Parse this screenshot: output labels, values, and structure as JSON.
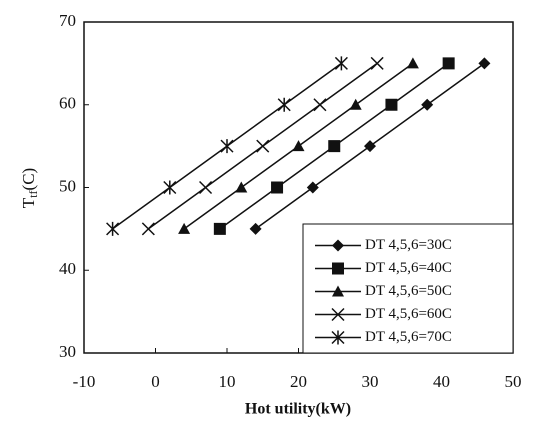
{
  "chart_data": {
    "type": "line",
    "xlabel": "Hot utility(kW)",
    "ylabel": [
      "T",
      "tf",
      "(C)"
    ],
    "xlim": [
      -10,
      50
    ],
    "xticks": [
      -10,
      0,
      10,
      20,
      30,
      40,
      50
    ],
    "ylim": [
      30,
      70
    ],
    "yticks": [
      30,
      40,
      50,
      60,
      70
    ],
    "legend": "lower right",
    "series": [
      {
        "name": "DT 4,5,6=30C",
        "marker": "diamond",
        "color": "#111111",
        "x": [
          14,
          22,
          30,
          38,
          46
        ],
        "values": [
          45,
          50,
          55,
          60,
          65
        ]
      },
      {
        "name": "DT 4,5,6=40C",
        "marker": "square",
        "color": "#111111",
        "x": [
          9,
          17,
          25,
          33,
          41
        ],
        "values": [
          45,
          50,
          55,
          60,
          65
        ]
      },
      {
        "name": "DT 4,5,6=50C",
        "marker": "triangle",
        "color": "#111111",
        "x": [
          4,
          12,
          20,
          28,
          36
        ],
        "values": [
          45,
          50,
          55,
          60,
          65
        ]
      },
      {
        "name": "DT 4,5,6=60C",
        "marker": "x",
        "color": "#111111",
        "x": [
          -1,
          7,
          15,
          23,
          31
        ],
        "values": [
          45,
          50,
          55,
          60,
          65
        ]
      },
      {
        "name": "DT 4,5,6=70C",
        "marker": "star",
        "color": "#111111",
        "x": [
          -6,
          2,
          10,
          18,
          26
        ],
        "values": [
          45,
          50,
          55,
          60,
          65
        ]
      }
    ]
  }
}
